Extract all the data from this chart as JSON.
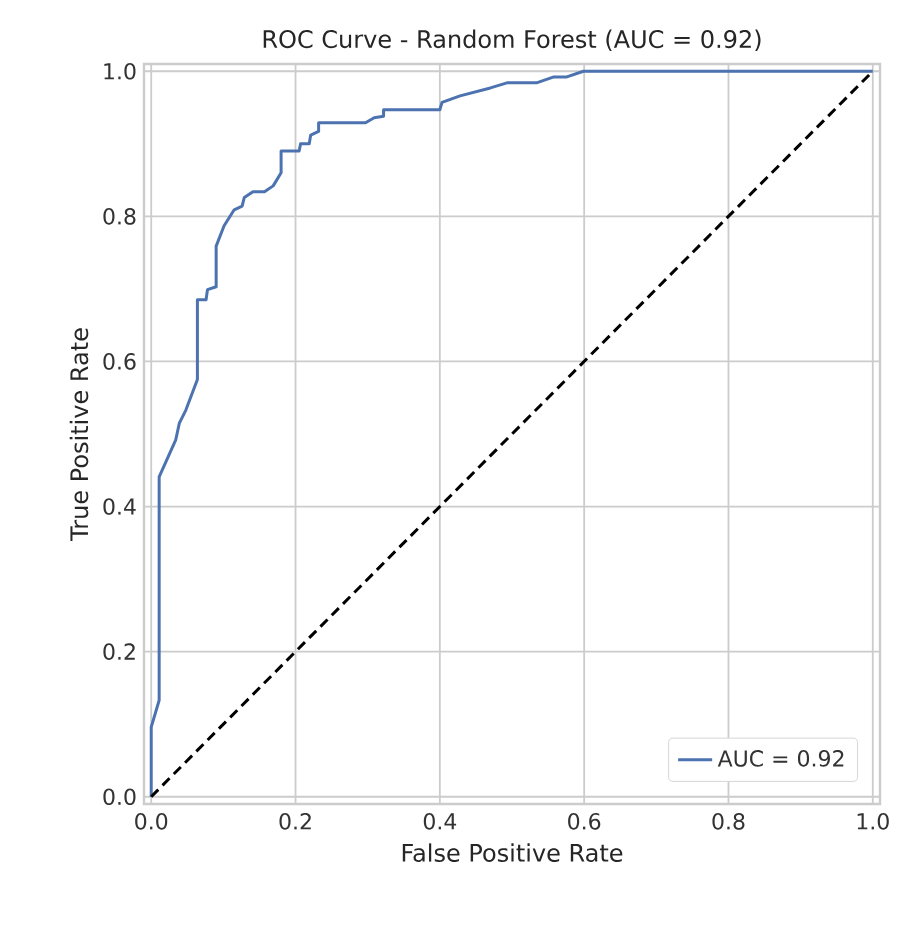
{
  "chart_data": {
    "type": "line",
    "title": "ROC Curve - Random Forest (AUC = 0.92)",
    "xlabel": "False Positive Rate",
    "ylabel": "True Positive Rate",
    "xlim": [
      -0.01,
      1.01
    ],
    "ylim": [
      -0.01,
      1.01
    ],
    "xticks": [
      {
        "value": 0,
        "label": "0.0"
      },
      0.2,
      0.4,
      0.6,
      0.8,
      {
        "value": 1,
        "label": "1.0"
      }
    ],
    "yticks": [
      {
        "value": 0,
        "label": "0.0"
      },
      0.2,
      0.4,
      0.6,
      0.8,
      {
        "value": 1,
        "label": "1.0"
      }
    ],
    "grid": true,
    "legend": "bottom right",
    "marker": "none",
    "series": [
      {
        "name": "AUC = 0.92",
        "color": "#4c72b0",
        "line_style": "solid",
        "x": [
          0,
          0,
          0.011,
          0.011,
          0.034,
          0.039,
          0.048,
          0.064,
          0.064,
          0.076,
          0.078,
          0.09,
          0.09,
          0.101,
          0.115,
          0.126,
          0.129,
          0.141,
          0.157,
          0.169,
          0.18,
          0.18,
          0.205,
          0.207,
          0.219,
          0.221,
          0.232,
          0.232,
          0.297,
          0.309,
          0.322,
          0.322,
          0.4,
          0.403,
          0.428,
          0.47,
          0.493,
          0.534,
          0.557,
          0.575,
          0.599,
          1
        ],
        "values": [
          0,
          0.096,
          0.133,
          0.441,
          0.492,
          0.515,
          0.533,
          0.575,
          0.685,
          0.685,
          0.699,
          0.703,
          0.759,
          0.787,
          0.809,
          0.814,
          0.826,
          0.834,
          0.834,
          0.842,
          0.86,
          0.89,
          0.89,
          0.9,
          0.9,
          0.912,
          0.917,
          0.929,
          0.929,
          0.936,
          0.938,
          0.947,
          0.947,
          0.957,
          0.966,
          0.977,
          0.984,
          0.984,
          0.992,
          0.992,
          1,
          1
        ]
      },
      {
        "color": "#000000",
        "line_style": "dashed",
        "x": [
          0,
          1
        ],
        "values": [
          0,
          1
        ]
      }
    ]
  }
}
